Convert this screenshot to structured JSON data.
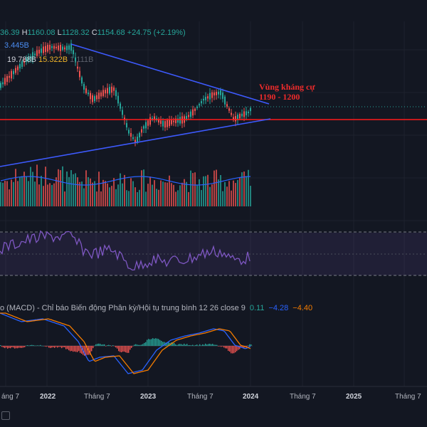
{
  "legend": {
    "ohlc_open_partial": "36.39",
    "high_key": "H",
    "high_value": "1160.08",
    "low_key": "L",
    "low_value": "1128.32",
    "close_key": "C",
    "close_value": "1154.68",
    "change": "+24.75 (+2.19%)",
    "volume_1": "3.445B",
    "volume_2": "19.788B",
    "volume_3": "15.322B",
    "volume_4": "1.111B"
  },
  "annotation": {
    "resistance_title": "Vùng kháng cự",
    "resistance_range": "1190 - 1200"
  },
  "macd": {
    "label": "o (MACD) - Chỉ báo Biến động Phân kỳ/Hội tụ trung bình 12 26 close 9",
    "value_hist": "0.11",
    "value_macd": "−4.28",
    "value_signal": "−4.40"
  },
  "x_axis": [
    "áng 7",
    "2022",
    "Tháng 7",
    "2023",
    "Tháng 7",
    "2024",
    "Tháng 7",
    "2025",
    "Tháng 7"
  ],
  "colors": {
    "background": "#131722",
    "up": "#26a69a",
    "down": "#ef5350",
    "trendline": "#2962ff",
    "support": "#ff1a1a",
    "macd_line": "#2962ff",
    "signal_line": "#f57c00"
  }
}
